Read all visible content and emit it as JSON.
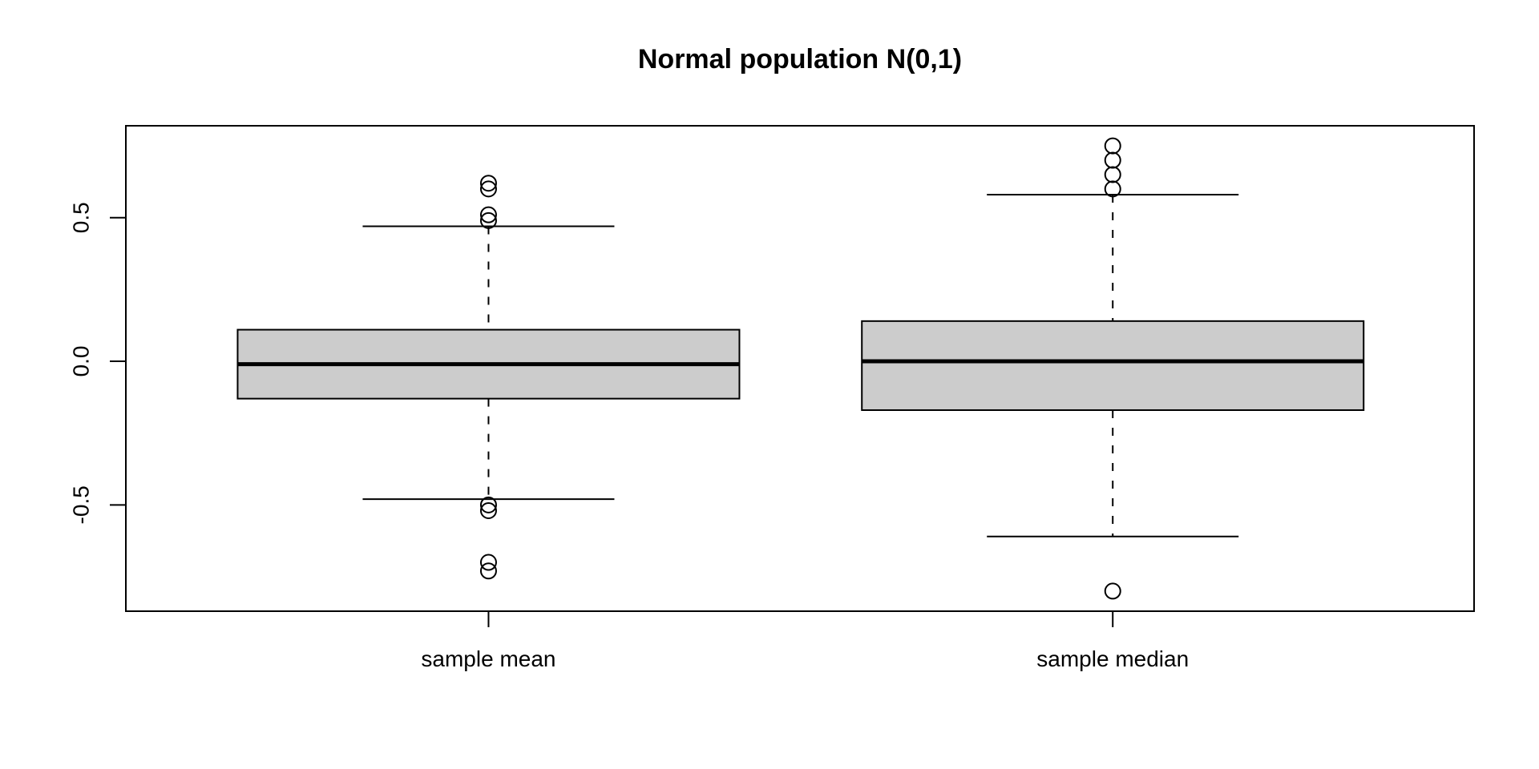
{
  "page": {
    "background": "#ffffff"
  },
  "chart_data": {
    "type": "boxplot",
    "title": "Normal population N(0,1)",
    "xlabel": "",
    "ylabel": "",
    "categories": [
      "sample mean",
      "sample median"
    ],
    "y_ticks": [
      "-0.5",
      "0.0",
      "0.5"
    ],
    "y_tick_values": [
      -0.5,
      0.0,
      0.5
    ],
    "ylim": [
      -0.87,
      0.82
    ],
    "grid": false,
    "legend": null,
    "colors": {
      "box_fill": "#cccccc",
      "stroke": "#000000",
      "background": "#ffffff"
    },
    "boxes": [
      {
        "label": "sample mean",
        "whisker_low": -0.48,
        "q1": -0.13,
        "median": -0.01,
        "q3": 0.11,
        "whisker_high": 0.47,
        "outliers": [
          0.62,
          0.6,
          0.51,
          0.49,
          -0.5,
          -0.52,
          -0.7,
          -0.73
        ]
      },
      {
        "label": "sample median",
        "whisker_low": -0.61,
        "q1": -0.17,
        "median": 0.0,
        "q3": 0.14,
        "whisker_high": 0.58,
        "outliers": [
          0.75,
          0.7,
          0.65,
          0.6,
          -0.8
        ]
      }
    ]
  }
}
